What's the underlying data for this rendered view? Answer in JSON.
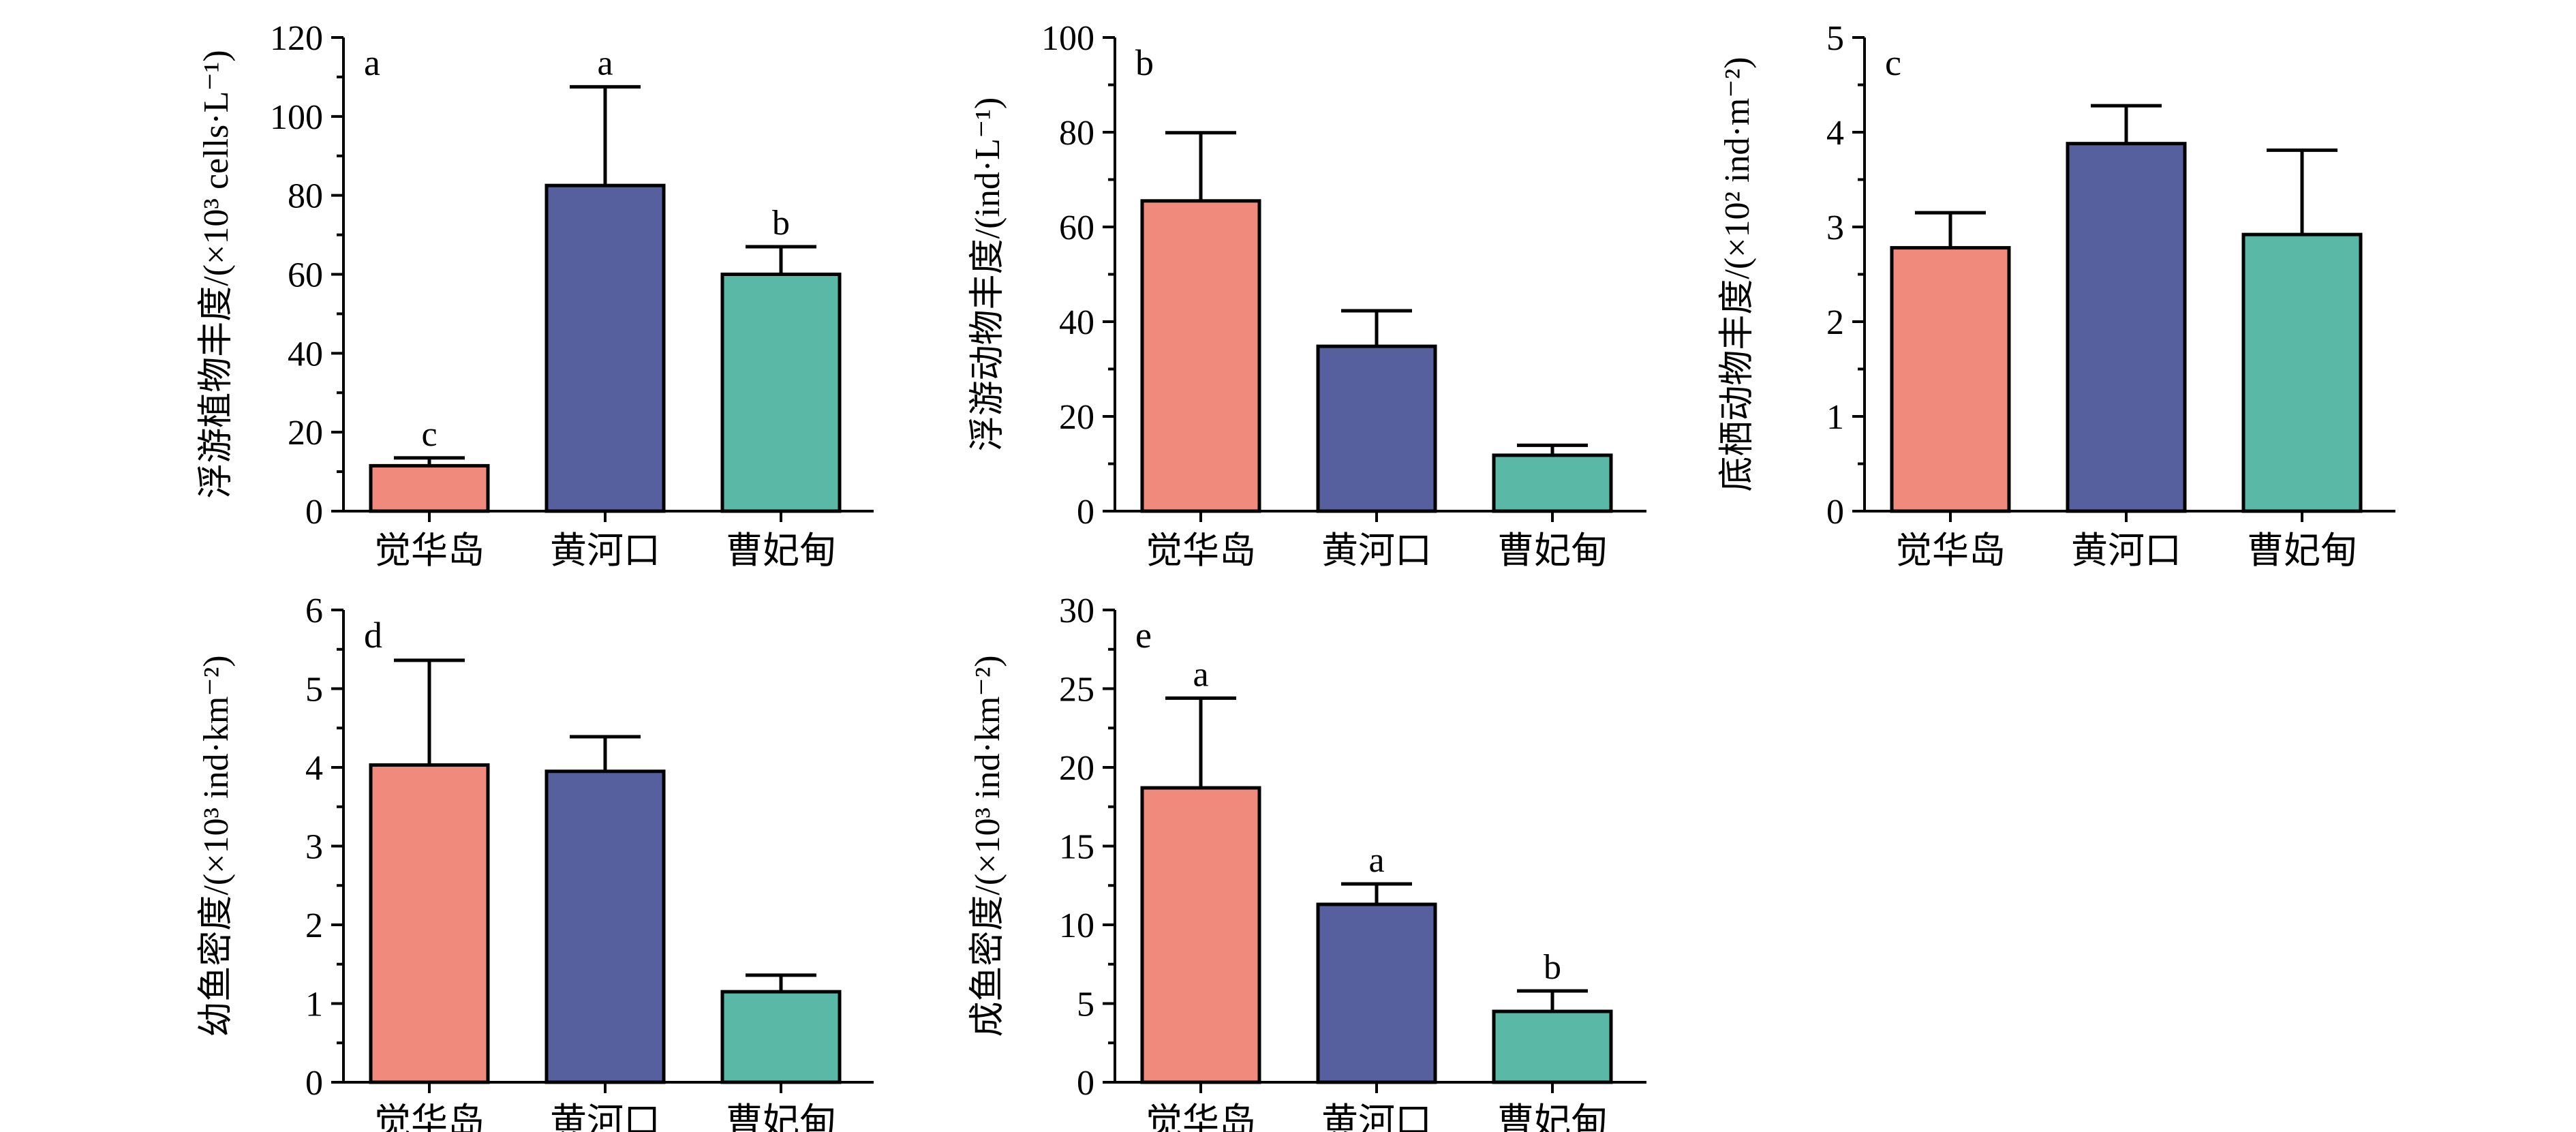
{
  "colors": {
    "dhd": "#ef8a7c",
    "hhk": "#56609f",
    "cfd": "#5ab8a7"
  },
  "chart_data": [
    {
      "type": "bar",
      "panel": "a",
      "categories": [
        "觉华岛",
        "黄河口",
        "曹妃甸"
      ],
      "values": [
        11.5,
        82.5,
        60
      ],
      "errors": [
        2,
        25,
        7
      ],
      "sig": [
        "c",
        "a",
        "b"
      ],
      "ylabel": "浮游植物丰度/(×10³ cells·L⁻¹)",
      "ylim": [
        0,
        120
      ],
      "yticks": [
        0,
        20,
        40,
        60,
        80,
        100,
        120
      ],
      "ytick_labels": [
        "0",
        "20",
        "40",
        "60",
        "80",
        "100",
        "120"
      ]
    },
    {
      "type": "bar",
      "panel": "b",
      "categories": [
        "觉华岛",
        "黄河口",
        "曹妃甸"
      ],
      "values": [
        65.5,
        34.8,
        11.8
      ],
      "errors": [
        14.4,
        7.5,
        2.1
      ],
      "sig": [
        "",
        "",
        ""
      ],
      "ylabel": "浮游动物丰度/(ind·L⁻¹)",
      "ylim": [
        0,
        100
      ],
      "yticks": [
        0,
        20,
        40,
        60,
        80,
        100
      ],
      "ytick_labels": [
        "0",
        "20",
        "40",
        "60",
        "80",
        "100"
      ]
    },
    {
      "type": "bar",
      "panel": "c",
      "categories": [
        "觉华岛",
        "黄河口",
        "曹妃甸"
      ],
      "values": [
        2.78,
        3.88,
        2.92
      ],
      "errors": [
        0.37,
        0.4,
        0.89
      ],
      "sig": [
        "",
        "",
        ""
      ],
      "ylabel": "底栖动物丰度/(×10² ind·m⁻²)",
      "ylim": [
        0,
        5
      ],
      "yticks": [
        0,
        1,
        2,
        3,
        4,
        5
      ],
      "ytick_labels": [
        "0",
        "1",
        "2",
        "3",
        "4",
        "5"
      ]
    },
    {
      "type": "bar",
      "panel": "d",
      "categories": [
        "觉华岛",
        "黄河口",
        "曹妃甸"
      ],
      "values": [
        4.03,
        3.95,
        1.15
      ],
      "errors": [
        1.33,
        0.44,
        0.21
      ],
      "sig": [
        "",
        "",
        ""
      ],
      "ylabel": "幼鱼密度/(×10³ ind·km⁻²)",
      "ylim": [
        0,
        6
      ],
      "yticks": [
        0,
        1,
        2,
        3,
        4,
        5,
        6
      ],
      "ytick_labels": [
        "0",
        "1",
        "2",
        "3",
        "4",
        "5",
        "6"
      ]
    },
    {
      "type": "bar",
      "panel": "e",
      "categories": [
        "觉华岛",
        "黄河口",
        "曹妃甸"
      ],
      "values": [
        18.7,
        11.3,
        4.5
      ],
      "errors": [
        5.7,
        1.3,
        1.3
      ],
      "sig": [
        "a",
        "a",
        "b"
      ],
      "ylabel": "成鱼密度/(×10³ ind·km⁻²)",
      "ylim": [
        0,
        30
      ],
      "yticks": [
        0,
        5,
        10,
        15,
        20,
        25,
        30
      ],
      "ytick_labels": [
        "0",
        "5",
        "10",
        "15",
        "20",
        "25",
        "30"
      ]
    }
  ]
}
